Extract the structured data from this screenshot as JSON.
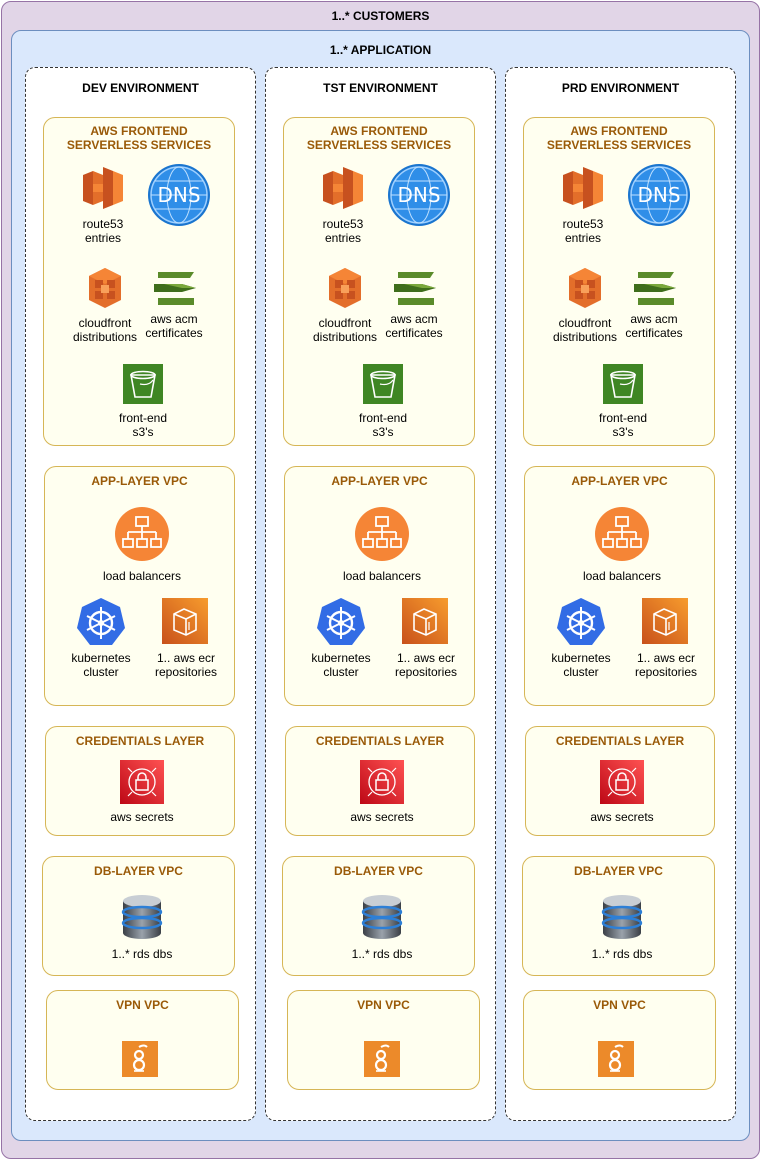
{
  "customers_label": "1..* CUSTOMERS",
  "application_label": "1..* APPLICATION",
  "colors": {
    "customers_fill": "#e1d5e7",
    "application_fill": "#dae8fc",
    "layer_fill": "#fffff0",
    "layer_title": "#9a5a08",
    "aws_orange": "#ed7100",
    "aws_green": "#3f8624",
    "aws_red": "#dd344c",
    "kubernetes_blue": "#326ce5"
  },
  "environments": [
    {
      "title": "DEV ENVIRONMENT",
      "frontend": {
        "title_line1": "AWS FRONTEND",
        "title_line2": "SERVERLESS SERVICES",
        "route53": [
          "route53",
          "entries"
        ],
        "dns_text": "DNS",
        "cloudfront": [
          "cloudfront",
          "distributions"
        ],
        "acm": [
          "aws acm",
          "certificates"
        ],
        "s3": [
          "front-end",
          "s3's"
        ]
      },
      "app": {
        "title": "APP-LAYER VPC",
        "lb": "load balancers",
        "k8s": [
          "kubernetes",
          "cluster"
        ],
        "ecr": [
          "1.. aws ecr",
          "repositories"
        ]
      },
      "cred": {
        "title": "CREDENTIALS LAYER",
        "secrets": "aws secrets"
      },
      "db": {
        "title": "DB-LAYER VPC",
        "rds": "1..* rds dbs"
      },
      "vpn": {
        "title": "VPN VPC"
      }
    },
    {
      "title": "TST ENVIRONMENT",
      "frontend": {
        "title_line1": "AWS FRONTEND",
        "title_line2": "SERVERLESS SERVICES",
        "route53": [
          "route53",
          "entries"
        ],
        "dns_text": "DNS",
        "cloudfront": [
          "cloudfront",
          "distributions"
        ],
        "acm": [
          "aws acm",
          "certificates"
        ],
        "s3": [
          "front-end",
          "s3's"
        ]
      },
      "app": {
        "title": "APP-LAYER VPC",
        "lb": "load balancers",
        "k8s": [
          "kubernetes",
          "cluster"
        ],
        "ecr": [
          "1.. aws ecr",
          "repositories"
        ]
      },
      "cred": {
        "title": "CREDENTIALS LAYER",
        "secrets": "aws secrets"
      },
      "db": {
        "title": "DB-LAYER VPC",
        "rds": "1..* rds dbs"
      },
      "vpn": {
        "title": "VPN VPC"
      }
    },
    {
      "title": "PRD ENVIRONMENT",
      "frontend": {
        "title_line1": "AWS FRONTEND",
        "title_line2": "SERVERLESS SERVICES",
        "route53": [
          "route53",
          "entries"
        ],
        "dns_text": "DNS",
        "cloudfront": [
          "cloudfront",
          "distributions"
        ],
        "acm": [
          "aws acm",
          "certificates"
        ],
        "s3": [
          "front-end",
          "s3's"
        ]
      },
      "app": {
        "title": "APP-LAYER VPC",
        "lb": "load balancers",
        "k8s": [
          "kubernetes",
          "cluster"
        ],
        "ecr": [
          "1.. aws ecr",
          "repositories"
        ]
      },
      "cred": {
        "title": "CREDENTIALS LAYER",
        "secrets": "aws secrets"
      },
      "db": {
        "title": "DB-LAYER VPC",
        "rds": "1..* rds dbs"
      },
      "vpn": {
        "title": "VPN VPC"
      }
    }
  ]
}
